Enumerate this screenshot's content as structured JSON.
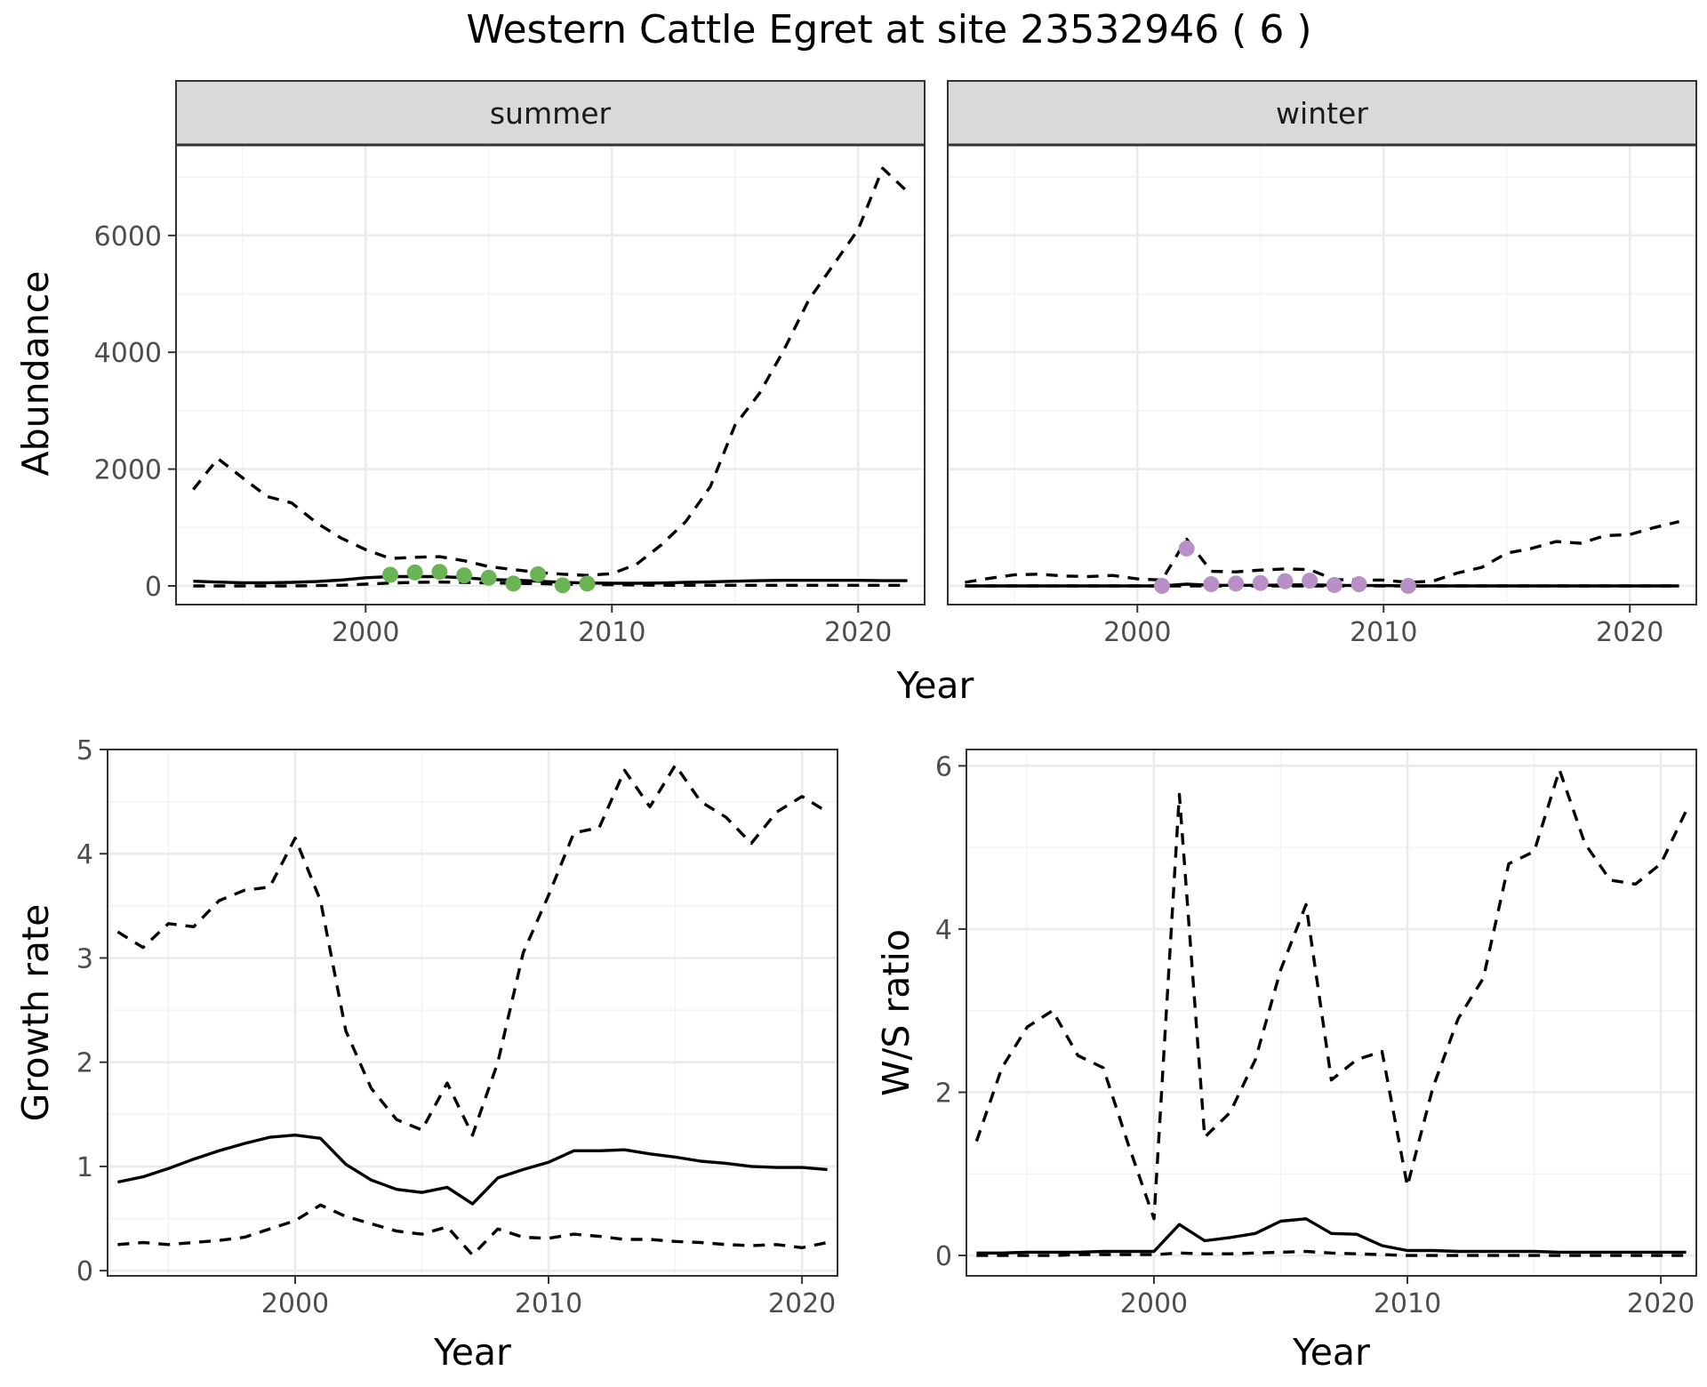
{
  "title": "Western Cattle Egret at site 23532946 ( 6 )",
  "colors": {
    "summer_points": "#6ab456",
    "winter_points": "#b88fc7",
    "lines": "#000000",
    "strip": "#d9d9d9"
  },
  "chart_data": [
    {
      "type": "line",
      "facet": "summer",
      "xlabel": "Year",
      "ylabel": "Abundance",
      "xlim": [
        1992.3,
        2022.7
      ],
      "ylim": [
        -320,
        7550
      ],
      "xticks": [
        2000,
        2010,
        2020
      ],
      "yticks": [
        0,
        2000,
        4000,
        6000
      ],
      "grid": true,
      "x": [
        1993,
        1994,
        1995,
        1996,
        1997,
        1998,
        1999,
        2000,
        2001,
        2002,
        2003,
        2004,
        2005,
        2006,
        2007,
        2008,
        2009,
        2010,
        2011,
        2012,
        2013,
        2014,
        2015,
        2016,
        2017,
        2018,
        2019,
        2020,
        2021,
        2022
      ],
      "series": [
        {
          "style": "dashed",
          "values": [
            1650,
            2180,
            1850,
            1530,
            1420,
            1080,
            820,
            620,
            470,
            490,
            500,
            430,
            330,
            280,
            230,
            200,
            180,
            210,
            370,
            700,
            1100,
            1700,
            2750,
            3300,
            4050,
            4900,
            5500,
            6100,
            7150,
            6750
          ]
        },
        {
          "style": "solid",
          "values": [
            80,
            65,
            55,
            55,
            60,
            75,
            100,
            140,
            160,
            160,
            160,
            140,
            110,
            100,
            80,
            60,
            50,
            45,
            45,
            50,
            60,
            70,
            80,
            90,
            95,
            95,
            95,
            95,
            90,
            90
          ]
        },
        {
          "style": "dashed",
          "values": [
            0,
            0,
            0,
            0,
            0,
            5,
            10,
            30,
            50,
            60,
            65,
            60,
            50,
            45,
            40,
            30,
            25,
            20,
            15,
            10,
            10,
            10,
            10,
            10,
            10,
            10,
            10,
            10,
            10,
            10
          ]
        }
      ],
      "points": {
        "x": [
          2001,
          2002,
          2003,
          2004,
          2005,
          2006,
          2007,
          2008,
          2009
        ],
        "y": [
          190,
          230,
          240,
          180,
          140,
          40,
          200,
          10,
          40
        ]
      }
    },
    {
      "type": "line",
      "facet": "winter",
      "xlabel": "Year",
      "ylabel": "",
      "xlim": [
        1992.3,
        2022.7
      ],
      "ylim": [
        -320,
        7550
      ],
      "xticks": [
        2000,
        2010,
        2020
      ],
      "yticks": [
        0,
        2000,
        4000,
        6000
      ],
      "grid": true,
      "x": [
        1993,
        1994,
        1995,
        1996,
        1997,
        1998,
        1999,
        2000,
        2001,
        2002,
        2003,
        2004,
        2005,
        2006,
        2007,
        2008,
        2009,
        2010,
        2011,
        2012,
        2013,
        2014,
        2015,
        2016,
        2017,
        2018,
        2019,
        2020,
        2021,
        2022
      ],
      "series": [
        {
          "style": "dashed",
          "values": [
            60,
            130,
            190,
            200,
            170,
            160,
            180,
            120,
            100,
            800,
            250,
            240,
            270,
            290,
            280,
            110,
            100,
            100,
            60,
            80,
            220,
            320,
            560,
            640,
            760,
            730,
            860,
            880,
            1000,
            1100
          ]
        },
        {
          "style": "solid",
          "values": [
            0,
            0,
            0,
            0,
            0,
            0,
            0,
            0,
            0,
            30,
            10,
            10,
            10,
            15,
            20,
            10,
            5,
            5,
            0,
            0,
            0,
            0,
            0,
            0,
            0,
            0,
            0,
            0,
            0,
            0
          ]
        },
        {
          "style": "dashed",
          "values": [
            0,
            0,
            0,
            0,
            0,
            0,
            0,
            0,
            0,
            0,
            0,
            0,
            0,
            0,
            0,
            0,
            0,
            0,
            0,
            0,
            0,
            0,
            0,
            0,
            0,
            0,
            0,
            0,
            0,
            0
          ]
        }
      ],
      "points": {
        "x": [
          2001,
          2002,
          2003,
          2004,
          2005,
          2006,
          2007,
          2008,
          2009,
          2011
        ],
        "y": [
          0,
          640,
          30,
          40,
          50,
          80,
          90,
          15,
          30,
          0
        ]
      }
    },
    {
      "type": "line",
      "xlabel": "Year",
      "ylabel": "Growth rate",
      "xlim": [
        1992.6,
        2021.4
      ],
      "ylim": [
        -0.05,
        5.0
      ],
      "xticks": [
        2000,
        2010,
        2020
      ],
      "yticks": [
        0,
        1,
        2,
        3,
        4,
        5
      ],
      "grid": true,
      "x": [
        1993,
        1994,
        1995,
        1996,
        1997,
        1998,
        1999,
        2000,
        2001,
        2002,
        2003,
        2004,
        2005,
        2006,
        2007,
        2008,
        2009,
        2010,
        2011,
        2012,
        2013,
        2014,
        2015,
        2016,
        2017,
        2018,
        2019,
        2020,
        2021
      ],
      "series": [
        {
          "style": "dashed",
          "values": [
            3.25,
            3.1,
            3.33,
            3.3,
            3.55,
            3.65,
            3.68,
            4.15,
            3.55,
            2.3,
            1.75,
            1.45,
            1.35,
            1.8,
            1.3,
            2.0,
            3.05,
            3.6,
            4.2,
            4.25,
            4.8,
            4.45,
            4.85,
            4.5,
            4.35,
            4.1,
            4.4,
            4.55,
            4.4
          ]
        },
        {
          "style": "solid",
          "values": [
            0.85,
            0.9,
            0.98,
            1.07,
            1.15,
            1.22,
            1.28,
            1.3,
            1.27,
            1.02,
            0.87,
            0.78,
            0.75,
            0.8,
            0.64,
            0.89,
            0.97,
            1.04,
            1.15,
            1.15,
            1.16,
            1.12,
            1.09,
            1.05,
            1.03,
            1.0,
            0.99,
            0.99,
            0.97
          ]
        },
        {
          "style": "dashed",
          "values": [
            0.25,
            0.27,
            0.25,
            0.27,
            0.29,
            0.32,
            0.4,
            0.48,
            0.63,
            0.52,
            0.45,
            0.38,
            0.35,
            0.42,
            0.15,
            0.4,
            0.32,
            0.31,
            0.35,
            0.33,
            0.3,
            0.3,
            0.28,
            0.27,
            0.25,
            0.24,
            0.25,
            0.22,
            0.27
          ]
        }
      ]
    },
    {
      "type": "line",
      "xlabel": "Year",
      "ylabel": "W/S ratio",
      "xlim": [
        1992.6,
        2021.4
      ],
      "ylim": [
        -0.25,
        6.2
      ],
      "xticks": [
        2000,
        2010,
        2020
      ],
      "yticks": [
        0,
        2,
        4,
        6
      ],
      "grid": true,
      "x": [
        1993,
        1994,
        1995,
        1996,
        1997,
        1998,
        1999,
        2000,
        2001,
        2002,
        2003,
        2004,
        2005,
        2006,
        2007,
        2008,
        2009,
        2010,
        2011,
        2012,
        2013,
        2014,
        2015,
        2016,
        2017,
        2018,
        2019,
        2020,
        2021
      ],
      "series": [
        {
          "style": "dashed",
          "values": [
            1.4,
            2.3,
            2.8,
            3.0,
            2.45,
            2.3,
            1.35,
            0.45,
            5.65,
            1.45,
            1.75,
            2.4,
            3.5,
            4.3,
            2.15,
            2.4,
            2.5,
            0.85,
            2.05,
            2.9,
            3.4,
            4.8,
            4.95,
            5.95,
            5.05,
            4.6,
            4.55,
            4.8,
            5.45
          ]
        },
        {
          "style": "solid",
          "values": [
            0.03,
            0.03,
            0.04,
            0.04,
            0.04,
            0.05,
            0.05,
            0.05,
            0.38,
            0.18,
            0.22,
            0.27,
            0.42,
            0.45,
            0.27,
            0.26,
            0.12,
            0.06,
            0.06,
            0.05,
            0.05,
            0.05,
            0.05,
            0.04,
            0.04,
            0.04,
            0.04,
            0.04,
            0.04
          ]
        },
        {
          "style": "dashed",
          "values": [
            0.0,
            0.0,
            0.0,
            0.0,
            0.01,
            0.01,
            0.01,
            0.01,
            0.03,
            0.02,
            0.02,
            0.03,
            0.04,
            0.05,
            0.03,
            0.02,
            0.01,
            0.0,
            0.0,
            0.0,
            0.0,
            0.0,
            0.0,
            0.0,
            0.0,
            0.0,
            0.0,
            0.0,
            0.0
          ]
        }
      ]
    }
  ]
}
